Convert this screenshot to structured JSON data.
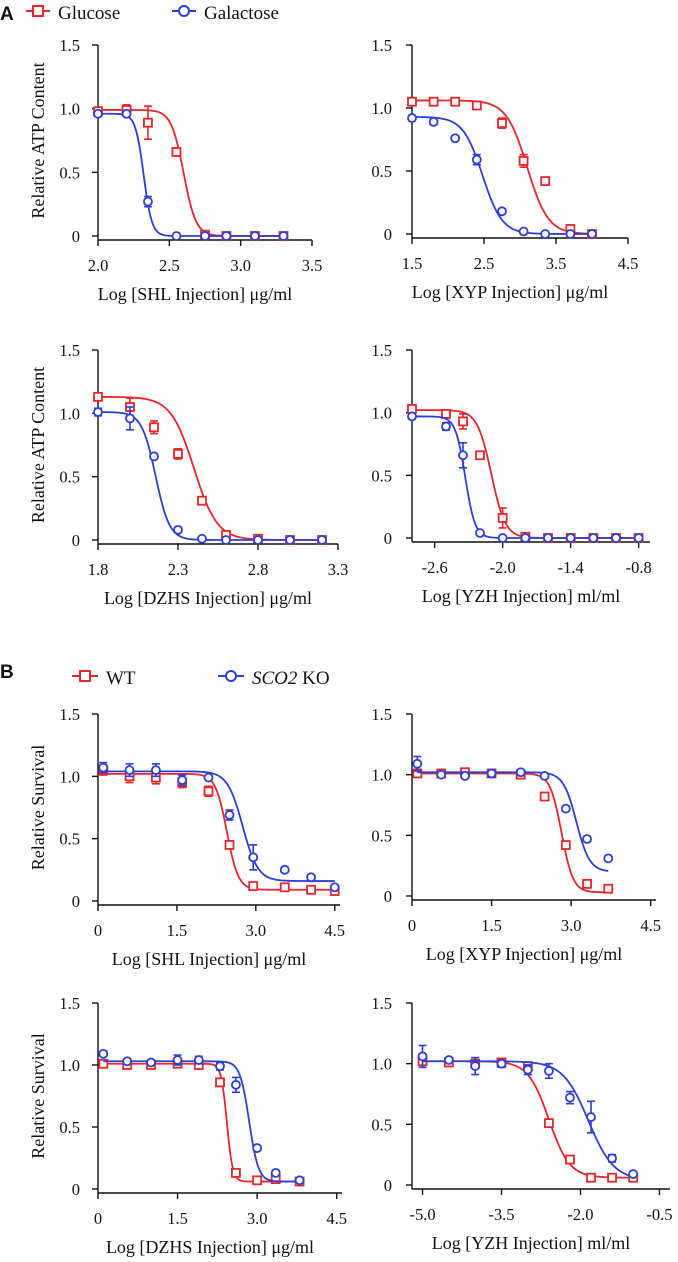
{
  "figure": {
    "panelA_letter": "A",
    "panelB_letter": "B",
    "legendA": [
      {
        "label": "Glucose",
        "color": "#e8262b",
        "marker": "square"
      },
      {
        "label": "Galactose",
        "color": "#2b3fd6",
        "marker": "circle"
      }
    ],
    "legendB": [
      {
        "label": "WT",
        "color": "#e8262b",
        "marker": "square"
      },
      {
        "label_italic": "SCO2",
        "label_rest": " KO",
        "color": "#2b3fd6",
        "marker": "circle"
      }
    ]
  },
  "colors": {
    "red": "#e8262b",
    "blue": "#2b3fd6",
    "axis": "#111111"
  },
  "chart_data": [
    {
      "id": "shl-atp",
      "type": "scatter",
      "xlabel": "Log [SHL Injection] μg/ml",
      "ylabel": "Relative ATP Content",
      "xlim": [
        2.0,
        3.5
      ],
      "ylim": [
        0,
        1.5
      ],
      "xticks": [
        2.0,
        2.5,
        3.0,
        3.5
      ],
      "xtick_labels": [
        "2.0",
        "2.5",
        "3.0",
        "3.5"
      ],
      "yticks": [
        0,
        0.5,
        1.0,
        1.5
      ],
      "ytick_labels": [
        "0",
        "0.5",
        "1.0",
        "1.5"
      ],
      "series": [
        {
          "name": "Glucose",
          "color": "#e8262b",
          "marker": "square",
          "x": [
            2.0,
            2.2,
            2.35,
            2.55,
            2.75,
            2.9,
            3.1,
            3.3
          ],
          "y": [
            0.98,
            0.99,
            0.89,
            0.66,
            0.01,
            0.0,
            0.0,
            0.0
          ],
          "err": [
            0.03,
            0.04,
            0.13,
            0.02,
            0.0,
            0.0,
            0.0,
            0.0
          ],
          "fit": {
            "top": 0.99,
            "bottom": 0.0,
            "ec50": 2.6,
            "hill": 10
          }
        },
        {
          "name": "Galactose",
          "color": "#2b3fd6",
          "marker": "circle",
          "x": [
            2.0,
            2.2,
            2.35,
            2.55,
            2.75,
            2.9,
            3.1,
            3.3
          ],
          "y": [
            0.96,
            0.96,
            0.27,
            0.0,
            0.0,
            0.0,
            0.0,
            0.0
          ],
          "err": [
            0.02,
            0.02,
            0.04,
            0.0,
            0.0,
            0.0,
            0.0,
            0.0
          ],
          "fit": {
            "top": 0.96,
            "bottom": 0.0,
            "ec50": 2.32,
            "hill": 15
          }
        }
      ]
    },
    {
      "id": "xyp-atp",
      "type": "scatter",
      "xlabel": "Log [XYP Injection] μg/ml",
      "ylabel": "",
      "xlim": [
        1.5,
        4.5
      ],
      "ylim": [
        0,
        1.5
      ],
      "xticks": [
        1.5,
        2.5,
        3.5,
        4.5
      ],
      "xtick_labels": [
        "1.5",
        "2.5",
        "3.5",
        "4.5"
      ],
      "yticks": [
        0,
        0.5,
        1.0,
        1.5
      ],
      "ytick_labels": [
        "0",
        "0.5",
        "1.0",
        "1.5"
      ],
      "series": [
        {
          "name": "Glucose",
          "color": "#e8262b",
          "marker": "square",
          "x": [
            1.5,
            1.8,
            2.1,
            2.4,
            2.75,
            3.05,
            3.35,
            3.7,
            4.0
          ],
          "y": [
            1.05,
            1.05,
            1.05,
            1.02,
            0.88,
            0.58,
            0.42,
            0.04,
            0.0
          ],
          "err": [
            0.02,
            0.02,
            0.02,
            0.02,
            0.04,
            0.05,
            0.02,
            0.02,
            0.0
          ],
          "fit": {
            "top": 1.06,
            "bottom": 0.0,
            "ec50": 3.1,
            "hill": 3.0
          }
        },
        {
          "name": "Galactose",
          "color": "#2b3fd6",
          "marker": "circle",
          "x": [
            1.5,
            1.8,
            2.1,
            2.4,
            2.75,
            3.05,
            3.35,
            3.7,
            4.0
          ],
          "y": [
            0.92,
            0.89,
            0.76,
            0.59,
            0.18,
            0.02,
            0.0,
            0.0,
            0.0
          ],
          "err": [
            0.02,
            0.02,
            0.02,
            0.04,
            0.02,
            0.0,
            0.0,
            0.0,
            0.0
          ],
          "fit": {
            "top": 0.93,
            "bottom": 0.0,
            "ec50": 2.48,
            "hill": 3.2
          }
        }
      ]
    },
    {
      "id": "dzhs-atp",
      "type": "scatter",
      "xlabel": "Log [DZHS Injection] μg/ml",
      "ylabel": "Relative ATP Content",
      "xlim": [
        1.8,
        3.3
      ],
      "ylim": [
        0,
        1.5
      ],
      "xticks": [
        1.8,
        2.3,
        2.8,
        3.3
      ],
      "xtick_labels": [
        "1.8",
        "2.3",
        "2.8",
        "3.3"
      ],
      "yticks": [
        0,
        0.5,
        1.0,
        1.5
      ],
      "ytick_labels": [
        "0",
        "0.5",
        "1.0",
        "1.5"
      ],
      "series": [
        {
          "name": "Glucose",
          "color": "#e8262b",
          "marker": "square",
          "x": [
            1.8,
            2.0,
            2.15,
            2.3,
            2.45,
            2.6,
            2.8,
            3.0,
            3.2
          ],
          "y": [
            1.13,
            1.05,
            0.89,
            0.68,
            0.31,
            0.04,
            0.01,
            0.0,
            0.0
          ],
          "err": [
            0.03,
            0.07,
            0.05,
            0.04,
            0.02,
            0.01,
            0.01,
            0.0,
            0.0
          ],
          "fit": {
            "top": 1.13,
            "bottom": 0.0,
            "ec50": 2.4,
            "hill": 6
          }
        },
        {
          "name": "Galactose",
          "color": "#2b3fd6",
          "marker": "circle",
          "x": [
            1.8,
            2.0,
            2.15,
            2.3,
            2.45,
            2.6,
            2.8,
            3.0,
            3.2
          ],
          "y": [
            1.01,
            0.96,
            0.66,
            0.08,
            0.01,
            0.0,
            0.0,
            0.0,
            0.0
          ],
          "err": [
            0.03,
            0.09,
            0.02,
            0.02,
            0.0,
            0.0,
            0.0,
            0.0,
            0.0
          ],
          "fit": {
            "top": 1.01,
            "bottom": 0.0,
            "ec50": 2.16,
            "hill": 10
          }
        }
      ]
    },
    {
      "id": "yzh-atp",
      "type": "scatter",
      "xlabel": "Log [YZH Injection]  ml/ml",
      "ylabel": "",
      "xlim": [
        -2.8,
        -0.7
      ],
      "ylim": [
        0,
        1.5
      ],
      "xticks": [
        -2.6,
        -2.0,
        -1.4,
        -0.8
      ],
      "xtick_labels": [
        "-2.6",
        "-2.0",
        "-1.4",
        "-0.8"
      ],
      "yticks": [
        0,
        0.5,
        1.0,
        1.5
      ],
      "ytick_labels": [
        "0",
        "0.5",
        "1.0",
        "1.5"
      ],
      "series": [
        {
          "name": "Glucose",
          "color": "#e8262b",
          "marker": "square",
          "x": [
            -2.8,
            -2.5,
            -2.35,
            -2.2,
            -2.0,
            -1.8,
            -1.6,
            -1.4,
            -1.2,
            -1.0,
            -0.8
          ],
          "y": [
            1.03,
            0.99,
            0.93,
            0.66,
            0.16,
            0.01,
            0.0,
            0.0,
            0.0,
            0.0,
            0.0
          ],
          "err": [
            0.03,
            0.03,
            0.06,
            0.03,
            0.08,
            0.0,
            0.0,
            0.0,
            0.0,
            0.0,
            0.0
          ],
          "fit": {
            "top": 1.02,
            "bottom": 0.0,
            "ec50": -2.1,
            "hill": 7
          }
        },
        {
          "name": "Galactose",
          "color": "#2b3fd6",
          "marker": "circle",
          "x": [
            -2.8,
            -2.5,
            -2.35,
            -2.2,
            -2.0,
            -1.8,
            -1.6,
            -1.4,
            -1.2,
            -1.0,
            -0.8
          ],
          "y": [
            0.97,
            0.89,
            0.66,
            0.04,
            0.0,
            0.0,
            0.0,
            0.0,
            0.0,
            0.0,
            0.0
          ],
          "err": [
            0.02,
            0.03,
            0.1,
            0.01,
            0.0,
            0.0,
            0.0,
            0.0,
            0.0,
            0.0,
            0.0
          ],
          "fit": {
            "top": 0.97,
            "bottom": 0.0,
            "ec50": -2.33,
            "hill": 10
          }
        }
      ]
    },
    {
      "id": "shl-survival",
      "type": "scatter",
      "xlabel": "Log [SHL Injection] μg/ml",
      "ylabel": "Relative Survival",
      "xlim": [
        0,
        4.6
      ],
      "ylim": [
        0,
        1.5
      ],
      "xticks": [
        0,
        1.5,
        3.0,
        4.5
      ],
      "xtick_labels": [
        "0",
        "1.5",
        "3.0",
        "4.5"
      ],
      "yticks": [
        0,
        0.5,
        1.0,
        1.5
      ],
      "ytick_labels": [
        "0",
        "0.5",
        "1.0",
        "1.5"
      ],
      "series": [
        {
          "name": "WT",
          "color": "#e8262b",
          "marker": "square",
          "x": [
            0.1,
            0.6,
            1.1,
            1.6,
            2.1,
            2.5,
            2.95,
            3.55,
            4.05,
            4.5
          ],
          "y": [
            1.05,
            1.0,
            0.99,
            0.95,
            0.88,
            0.45,
            0.12,
            0.11,
            0.09,
            0.08
          ],
          "err": [
            0.04,
            0.05,
            0.05,
            0.04,
            0.04,
            0.03,
            0.02,
            0.01,
            0.01,
            0.01
          ],
          "fit": {
            "top": 1.02,
            "bottom": 0.09,
            "ec50": 2.45,
            "hill": 4
          }
        },
        {
          "name": "SCO2 KO",
          "color": "#2b3fd6",
          "marker": "circle",
          "x": [
            0.1,
            0.6,
            1.1,
            1.6,
            2.1,
            2.5,
            2.95,
            3.55,
            4.05,
            4.5
          ],
          "y": [
            1.07,
            1.05,
            1.05,
            0.97,
            0.99,
            0.69,
            0.35,
            0.25,
            0.19,
            0.11
          ],
          "err": [
            0.04,
            0.05,
            0.05,
            0.04,
            0.02,
            0.04,
            0.1,
            0.02,
            0.02,
            0.02
          ],
          "fit": {
            "top": 1.04,
            "bottom": 0.16,
            "ec50": 2.75,
            "hill": 3
          }
        }
      ]
    },
    {
      "id": "xyp-survival",
      "type": "scatter",
      "xlabel": "Log [XYP Injection] μg/ml",
      "ylabel": "",
      "xlim": [
        0,
        4.6
      ],
      "ylim": [
        0,
        1.5
      ],
      "xticks": [
        0,
        1.5,
        3.0,
        4.5
      ],
      "xtick_labels": [
        "0",
        "1.5",
        "3.0",
        "4.5"
      ],
      "yticks": [
        0,
        0.5,
        1.0,
        1.5
      ],
      "ytick_labels": [
        "0",
        "0.5",
        "1.0",
        "1.5"
      ],
      "series": [
        {
          "name": "WT",
          "color": "#e8262b",
          "marker": "square",
          "x": [
            0.1,
            0.55,
            1.0,
            1.5,
            2.05,
            2.5,
            2.9,
            3.3,
            3.7
          ],
          "y": [
            1.01,
            1.01,
            1.02,
            1.01,
            1.0,
            0.82,
            0.42,
            0.1,
            0.06
          ],
          "err": [
            0.02,
            0.02,
            0.02,
            0.03,
            0.02,
            0.02,
            0.02,
            0.02,
            0.01
          ],
          "fit": {
            "top": 1.01,
            "bottom": 0.03,
            "ec50": 2.82,
            "hill": 4
          }
        },
        {
          "name": "SCO2 KO",
          "color": "#2b3fd6",
          "marker": "circle",
          "x": [
            0.1,
            0.55,
            1.0,
            1.5,
            2.05,
            2.5,
            2.9,
            3.3,
            3.7
          ],
          "y": [
            1.09,
            1.0,
            0.99,
            1.01,
            1.02,
            0.99,
            0.72,
            0.47,
            0.31
          ],
          "err": [
            0.06,
            0.02,
            0.02,
            0.03,
            0.02,
            0.02,
            0.02,
            0.02,
            0.02
          ],
          "fit": {
            "top": 1.02,
            "bottom": 0.2,
            "ec50": 3.1,
            "hill": 3.5
          }
        }
      ]
    },
    {
      "id": "dzhs-survival",
      "type": "scatter",
      "xlabel": "Log [DZHS Injection] μg/ml",
      "ylabel": "Relative Survival",
      "xlim": [
        0,
        4.6
      ],
      "ylim": [
        0,
        1.5
      ],
      "xticks": [
        0,
        1.5,
        3.0,
        4.5
      ],
      "xtick_labels": [
        "0",
        "1.5",
        "3.0",
        "4.5"
      ],
      "yticks": [
        0,
        0.5,
        1.0,
        1.5
      ],
      "ytick_labels": [
        "0",
        "0.5",
        "1.0",
        "1.5"
      ],
      "series": [
        {
          "name": "WT",
          "color": "#e8262b",
          "marker": "square",
          "x": [
            0.1,
            0.55,
            1.0,
            1.5,
            1.9,
            2.3,
            2.6,
            3.0,
            3.35,
            3.8
          ],
          "y": [
            1.01,
            1.0,
            1.0,
            1.01,
            1.0,
            0.86,
            0.13,
            0.07,
            0.08,
            0.06
          ],
          "err": [
            0.02,
            0.02,
            0.02,
            0.02,
            0.02,
            0.02,
            0.02,
            0.01,
            0.01,
            0.01
          ],
          "fit": {
            "top": 1.01,
            "bottom": 0.06,
            "ec50": 2.43,
            "hill": 8
          }
        },
        {
          "name": "SCO2 KO",
          "color": "#2b3fd6",
          "marker": "circle",
          "x": [
            0.1,
            0.55,
            1.0,
            1.5,
            1.9,
            2.3,
            2.6,
            3.0,
            3.35,
            3.8
          ],
          "y": [
            1.09,
            1.03,
            1.02,
            1.04,
            1.04,
            0.99,
            0.84,
            0.33,
            0.13,
            0.07
          ],
          "err": [
            0.02,
            0.02,
            0.02,
            0.04,
            0.03,
            0.03,
            0.06,
            0.02,
            0.02,
            0.01
          ],
          "fit": {
            "top": 1.03,
            "bottom": 0.06,
            "ec50": 2.85,
            "hill": 5
          }
        }
      ]
    },
    {
      "id": "yzh-survival",
      "type": "scatter",
      "xlabel": "Log [YZH Injection] ml/ml",
      "ylabel": "",
      "xlim": [
        -5.2,
        -0.3
      ],
      "ylim": [
        0,
        1.5
      ],
      "xticks": [
        -5.0,
        -3.5,
        -2.0,
        -0.5
      ],
      "xtick_labels": [
        "-5.0",
        "-3.5",
        "-2.0",
        "-0.5"
      ],
      "yticks": [
        0,
        0.5,
        1.0,
        1.5
      ],
      "ytick_labels": [
        "0",
        "0.5",
        "1.0",
        "1.5"
      ],
      "series": [
        {
          "name": "WT",
          "color": "#e8262b",
          "marker": "square",
          "x": [
            -5.0,
            -4.5,
            -4.0,
            -3.5,
            -3.0,
            -2.6,
            -2.2,
            -1.8,
            -1.4,
            -1.0
          ],
          "y": [
            1.02,
            1.01,
            1.0,
            1.01,
            0.98,
            0.51,
            0.21,
            0.06,
            0.06,
            0.06
          ],
          "err": [
            0.05,
            0.02,
            0.02,
            0.03,
            0.02,
            0.03,
            0.03,
            0.01,
            0.01,
            0.01
          ],
          "fit": {
            "top": 1.02,
            "bottom": 0.06,
            "ec50": -2.6,
            "hill": 2.2
          }
        },
        {
          "name": "SCO2 KO",
          "color": "#2b3fd6",
          "marker": "circle",
          "x": [
            -5.0,
            -4.5,
            -4.0,
            -3.5,
            -3.0,
            -2.6,
            -2.2,
            -1.8,
            -1.4,
            -1.0
          ],
          "y": [
            1.06,
            1.03,
            0.98,
            1.0,
            0.95,
            0.94,
            0.72,
            0.56,
            0.22,
            0.09
          ],
          "err": [
            0.09,
            0.02,
            0.07,
            0.03,
            0.04,
            0.06,
            0.05,
            0.13,
            0.03,
            0.02
          ],
          "fit": {
            "top": 1.02,
            "bottom": 0.04,
            "ec50": -1.85,
            "hill": 1.8
          }
        }
      ]
    }
  ]
}
